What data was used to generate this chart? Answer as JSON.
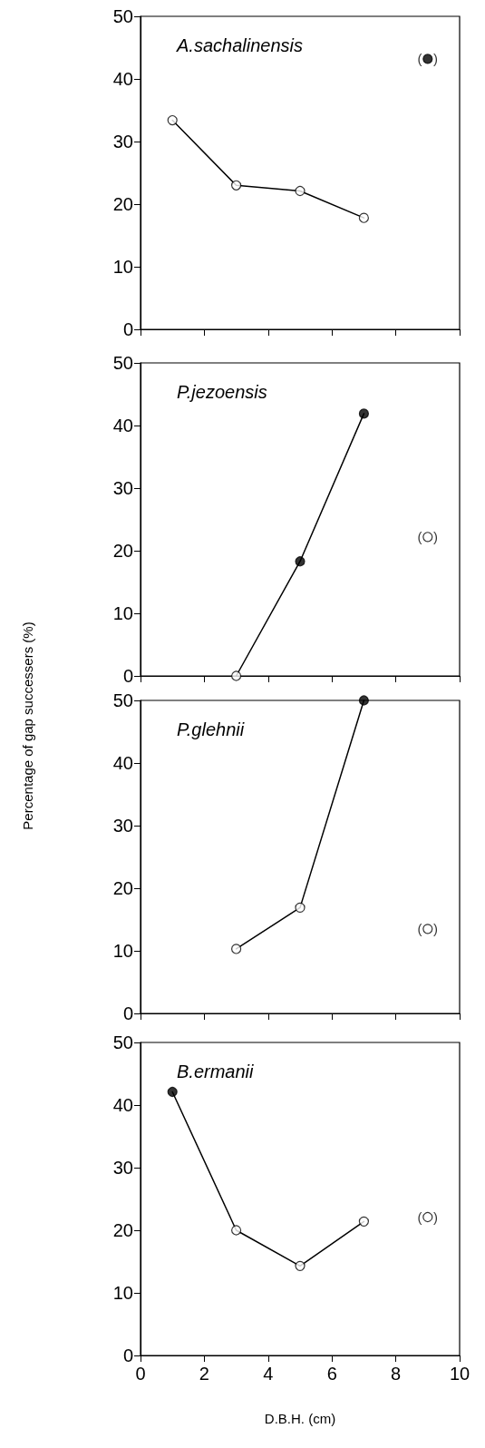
{
  "chart_data": [
    {
      "type": "line",
      "title": "A.sachalinensis",
      "xlim": [
        0,
        10
      ],
      "xticks": [
        0,
        2,
        4,
        6,
        8,
        10
      ],
      "ylim": [
        0,
        50
      ],
      "yticks": [
        0,
        10,
        20,
        30,
        40,
        50
      ],
      "tick_labels": "y",
      "series": [
        {
          "type": "line",
          "color": "#000000",
          "marker": "none",
          "x": [
            1,
            3,
            5,
            7
          ],
          "values": [
            33.4,
            23.0,
            22.1,
            17.8
          ]
        },
        {
          "type": "scatter",
          "color": "#ffffff",
          "marker": "circle",
          "x": [
            1,
            3,
            5,
            7
          ],
          "values": [
            33.4,
            23.0,
            22.1,
            17.8
          ]
        },
        {
          "type": "scatter",
          "color": "#000000",
          "marker": "circle",
          "x": [
            9
          ],
          "values": [
            43.2
          ],
          "value_labels": [
            "(   )"
          ]
        }
      ]
    },
    {
      "type": "line",
      "title": "P.jezoensis",
      "ylabel": "Percentage of gap successers (%)",
      "xlim": [
        0,
        10
      ],
      "xticks": [
        0,
        2,
        4,
        6,
        8,
        10
      ],
      "ylim": [
        0,
        50
      ],
      "yticks": [
        0,
        10,
        20,
        30,
        40,
        50
      ],
      "tick_labels": "y",
      "series": [
        {
          "type": "line",
          "color": "#000000",
          "marker": "none",
          "x": [
            3,
            5,
            7
          ],
          "values": [
            0,
            18.3,
            41.9
          ]
        },
        {
          "type": "scatter",
          "color": "#ffffff",
          "marker": "circle",
          "x": [
            3,
            9
          ],
          "values": [
            0,
            22.2
          ],
          "value_labels": [
            null,
            "(   )"
          ]
        },
        {
          "type": "scatter",
          "color": "#000000",
          "marker": "circle",
          "x": [
            5,
            7
          ],
          "values": [
            18.3,
            41.9
          ]
        }
      ]
    },
    {
      "type": "line",
      "title": "P.glehnii",
      "xlim": [
        0,
        10
      ],
      "xticks": [
        0,
        2,
        4,
        6,
        8,
        10
      ],
      "ylim": [
        0,
        50
      ],
      "yticks": [
        0,
        10,
        20,
        30,
        40,
        50
      ],
      "tick_labels": "y",
      "series": [
        {
          "type": "line",
          "color": "#000000",
          "marker": "none",
          "x": [
            3,
            5,
            7
          ],
          "values": [
            10.3,
            16.9,
            50
          ]
        },
        {
          "type": "scatter",
          "color": "#ffffff",
          "marker": "circle",
          "x": [
            3,
            5,
            9
          ],
          "values": [
            10.3,
            16.9,
            13.5
          ],
          "value_labels": [
            null,
            null,
            "(   )"
          ]
        },
        {
          "type": "scatter",
          "color": "#000000",
          "marker": "circle",
          "x": [
            7
          ],
          "values": [
            50
          ]
        }
      ]
    },
    {
      "type": "line",
      "title": "B.ermanii",
      "xlabel": "D.B.H. (cm)",
      "xlim": [
        0,
        10
      ],
      "xticks": [
        0,
        2,
        4,
        6,
        8,
        10
      ],
      "ylim": [
        0,
        50
      ],
      "yticks": [
        0,
        10,
        20,
        30,
        40,
        50
      ],
      "series": [
        {
          "type": "line",
          "color": "#000000",
          "marker": "none",
          "x": [
            1,
            3,
            5,
            7
          ],
          "values": [
            42.1,
            20.0,
            14.3,
            21.4
          ]
        },
        {
          "type": "scatter",
          "color": "#ffffff",
          "marker": "circle",
          "x": [
            3,
            5,
            7,
            9
          ],
          "values": [
            20.0,
            14.3,
            21.4,
            22.1
          ],
          "value_labels": [
            null,
            null,
            null,
            "(   )"
          ]
        },
        {
          "type": "scatter",
          "color": "#000000",
          "marker": "circle",
          "x": [
            1
          ],
          "values": [
            42.1
          ]
        }
      ]
    }
  ]
}
